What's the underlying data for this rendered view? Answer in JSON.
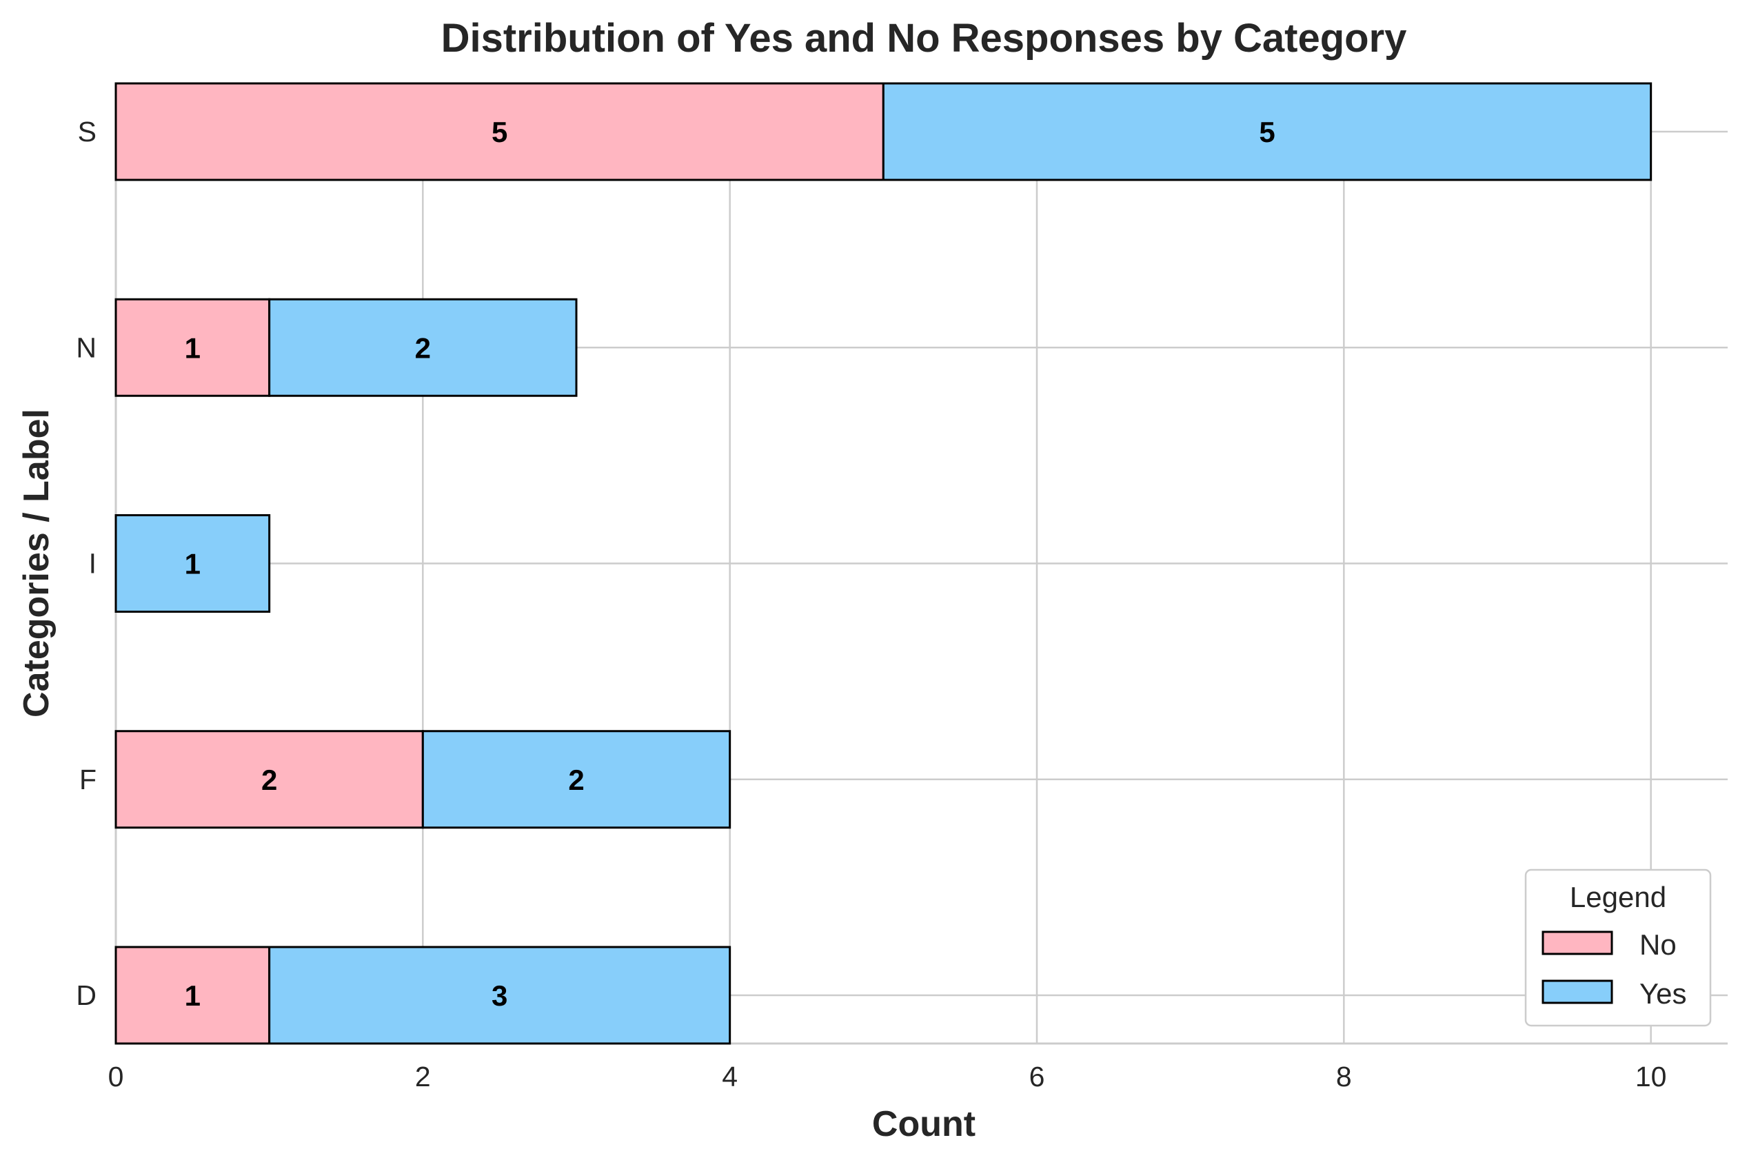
{
  "chart_data": {
    "type": "bar",
    "orientation": "horizontal",
    "stacked": true,
    "title": "Distribution of Yes and No Responses by Category",
    "xlabel": "Count",
    "ylabel": "Categories / Label",
    "categories": [
      "D",
      "F",
      "I",
      "N",
      "S"
    ],
    "series": [
      {
        "name": "No",
        "values": [
          1,
          2,
          0,
          1,
          5
        ],
        "color": "#ffb6c1"
      },
      {
        "name": "Yes",
        "values": [
          3,
          2,
          1,
          2,
          5
        ],
        "color": "#87cefa"
      }
    ],
    "xlim": [
      0,
      10.5
    ],
    "xticks": [
      "0",
      "2",
      "4",
      "6",
      "8",
      "10"
    ],
    "grid": true,
    "legend": {
      "title": "Legend",
      "position": "bottom-right"
    }
  }
}
